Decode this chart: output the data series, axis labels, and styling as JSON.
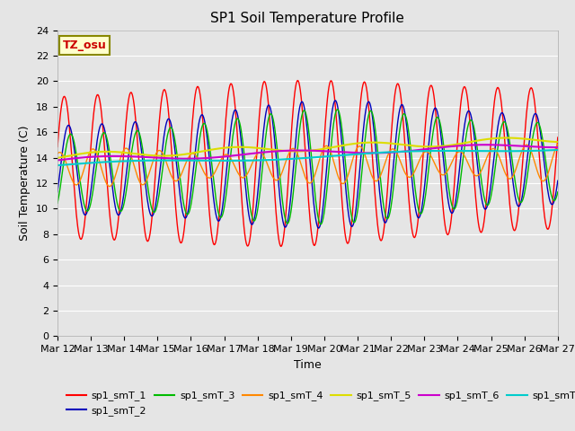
{
  "title": "SP1 Soil Temperature Profile",
  "xlabel": "Time",
  "ylabel": "Soil Temperature (C)",
  "tz_label": "TZ_osu",
  "ylim": [
    0,
    24
  ],
  "yticks": [
    0,
    2,
    4,
    6,
    8,
    10,
    12,
    14,
    16,
    18,
    20,
    22,
    24
  ],
  "x_tick_labels": [
    "Mar 12",
    "Mar 13",
    "Mar 14",
    "Mar 15",
    "Mar 16",
    "Mar 17",
    "Mar 18",
    "Mar 19",
    "Mar 20",
    "Mar 21",
    "Mar 22",
    "Mar 23",
    "Mar 24",
    "Mar 25",
    "Mar 26",
    "Mar 27"
  ],
  "series_colors": {
    "sp1_smT_1": "#FF0000",
    "sp1_smT_2": "#0000BB",
    "sp1_smT_3": "#00BB00",
    "sp1_smT_4": "#FF8800",
    "sp1_smT_5": "#DDDD00",
    "sp1_smT_6": "#CC00CC",
    "sp1_smT_7": "#00CCCC"
  },
  "background_color": "#E5E5E5",
  "grid_color": "#FFFFFF",
  "fig_facecolor": "#E5E5E5",
  "title_fontsize": 11,
  "axis_fontsize": 9,
  "tick_fontsize": 8
}
